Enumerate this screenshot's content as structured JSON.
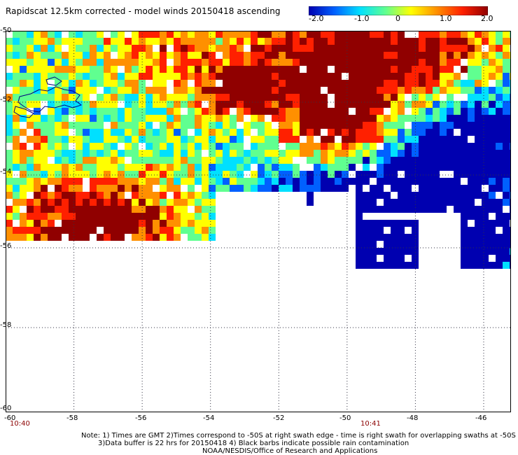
{
  "title": "Rapidscat 12.5km corrected - model winds 20150418 ascending",
  "colorbar": {
    "ticks": [
      "-2.0",
      "-1.0",
      "0",
      "1.0",
      "2.0"
    ],
    "colors": [
      "#0000b0",
      "#0060ff",
      "#00e0ff",
      "#60ff90",
      "#ffff00",
      "#ff9000",
      "#ff2000",
      "#900000"
    ]
  },
  "map": {
    "lat_labels": [
      "-50",
      "-52",
      "-54",
      "-56",
      "-58",
      "-60"
    ],
    "lon_labels": [
      "-60",
      "-58",
      "-56",
      "-54",
      "-52",
      "-50",
      "-48",
      "-46"
    ],
    "time_labels": [
      "10:40",
      "10:41"
    ],
    "coast_color": "#000080"
  },
  "notes": {
    "line1": "Note: 1) Times are GMT 2)Times correspond to -50S at right swath edge - time is right swath for overlapping swaths at -50S",
    "line2": "3)Data buffer is 22 hrs for 20150418 4) Black barbs indicate possible rain contamination",
    "line3": "NOAA/NESDIS/Office of Research and Applications"
  }
}
